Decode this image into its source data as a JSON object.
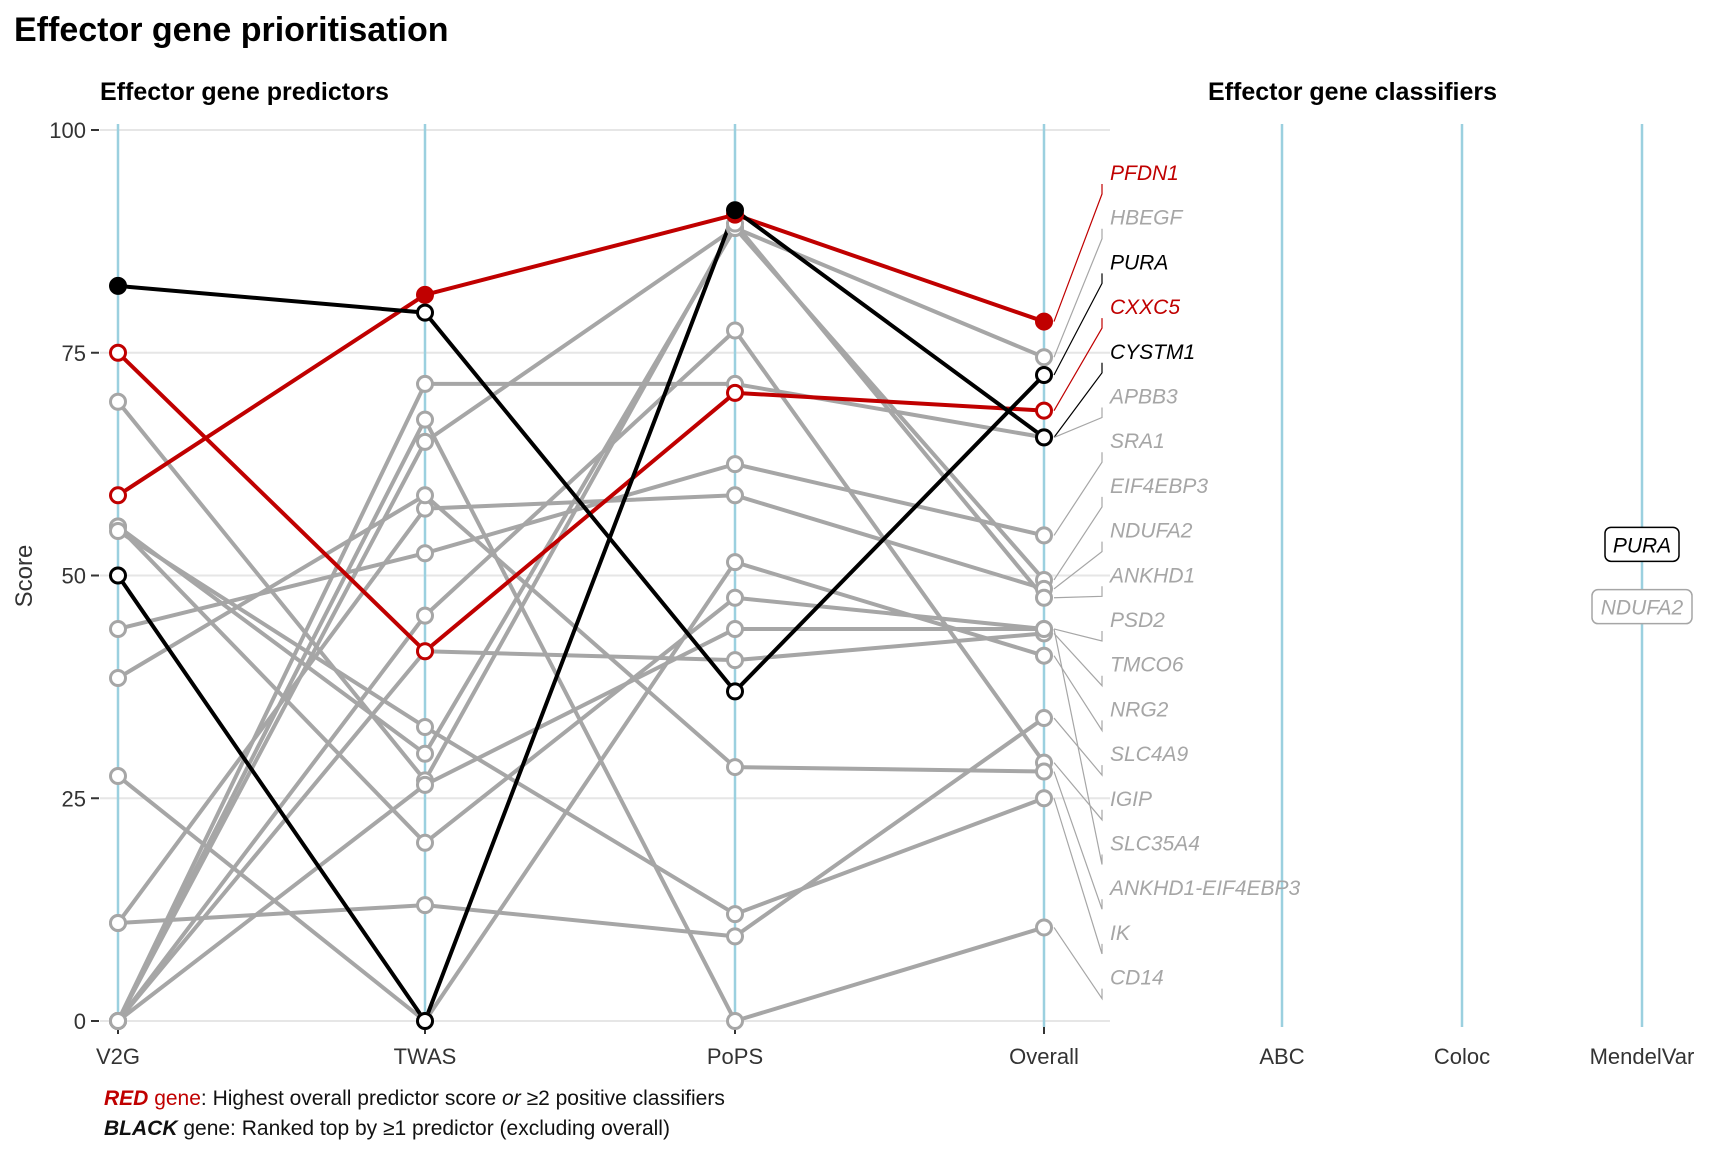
{
  "title": "Effector gene prioritisation",
  "predictors_subtitle": "Effector gene predictors",
  "classifiers_subtitle": "Effector gene classifiers",
  "caption": {
    "line1_em": "RED",
    "line1_word": "gene",
    "line1_rest": ": Highest overall predictor score ",
    "line1_or": "or",
    "line1_end": " ≥2 positive classifiers",
    "line2_em": "BLACK",
    "line2_rest": " gene: Ranked top by ≥1 predictor (excluding overall)"
  },
  "colors": {
    "red": "#c00000",
    "black": "#000000",
    "grey": "#a6a6a6",
    "axis_line": "#9bd0df",
    "grid": "#e6e6e6"
  },
  "chart_data": {
    "type": "line",
    "title": "Effector gene prioritisation",
    "ylabel": "Score",
    "ylim": [
      0,
      100
    ],
    "yticks": [
      0,
      25,
      50,
      75,
      100
    ],
    "categories": [
      "V2G",
      "TWAS",
      "PoPS",
      "Overall"
    ],
    "classifier_categories": [
      "ABC",
      "Coloc",
      "MendelVar"
    ],
    "grid": "horizontal",
    "series": [
      {
        "name": "PFDN1",
        "group": "red",
        "values": [
          59,
          81.5,
          90.5,
          78.5
        ],
        "filled": [
          false,
          true,
          true,
          true
        ]
      },
      {
        "name": "CXXC5",
        "group": "red",
        "values": [
          75,
          41.5,
          70.5,
          68.5
        ],
        "filled": [
          false,
          false,
          false,
          false
        ]
      },
      {
        "name": "PURA",
        "group": "black",
        "values": [
          82.5,
          79.5,
          37,
          72.5
        ],
        "filled": [
          true,
          false,
          false,
          false
        ]
      },
      {
        "name": "CYSTM1",
        "group": "black",
        "values": [
          50,
          0,
          91,
          65.5
        ],
        "filled": [
          false,
          false,
          true,
          false
        ]
      },
      {
        "name": "HBEGF",
        "group": "grey",
        "values": [
          0,
          65,
          89,
          74.5
        ]
      },
      {
        "name": "APBB3",
        "group": "grey",
        "values": [
          0,
          71.5,
          71.5,
          65.5
        ]
      },
      {
        "name": "SRA1",
        "group": "grey",
        "values": [
          44,
          52.5,
          62.5,
          54.5
        ]
      },
      {
        "name": "EIF4EBP3",
        "group": "grey",
        "values": [
          55.5,
          30,
          89,
          49.5
        ]
      },
      {
        "name": "NDUFA2",
        "group": "grey",
        "values": [
          11,
          57.5,
          59,
          48.5
        ]
      },
      {
        "name": "ANKHD1",
        "group": "grey",
        "values": [
          69.5,
          27,
          89.5,
          47.5
        ]
      },
      {
        "name": "PSD2",
        "group": "grey",
        "values": [
          55.5,
          20,
          47.5,
          44
        ]
      },
      {
        "name": "TMCO6",
        "group": "grey",
        "values": [
          0,
          41.5,
          40.5,
          43.5
        ]
      },
      {
        "name": "NRG2",
        "group": "grey",
        "values": [
          27.5,
          0,
          51.5,
          41
        ]
      },
      {
        "name": "SLC4A9",
        "group": "grey",
        "values": [
          11,
          13,
          9.5,
          34
        ]
      },
      {
        "name": "IGIP",
        "group": "grey",
        "values": [
          0,
          45.5,
          77.5,
          29
        ]
      },
      {
        "name": "SLC35A4",
        "group": "grey",
        "values": [
          0,
          26.5,
          44,
          44
        ]
      },
      {
        "name": "ANKHD1-EIF4EBP3",
        "group": "grey",
        "values": [
          38.5,
          59,
          28.5,
          28
        ]
      },
      {
        "name": "IK",
        "group": "grey",
        "values": [
          55,
          33,
          12,
          25
        ]
      },
      {
        "name": "CD14",
        "group": "grey",
        "values": [
          0,
          67.5,
          0,
          10.5
        ]
      }
    ],
    "overall_labels": [
      {
        "text": "PFDN1",
        "group": "red"
      },
      {
        "text": "HBEGF",
        "group": "grey"
      },
      {
        "text": "PURA",
        "group": "black"
      },
      {
        "text": "CXXC5",
        "group": "red"
      },
      {
        "text": "CYSTM1",
        "group": "black"
      },
      {
        "text": "APBB3",
        "group": "grey"
      },
      {
        "text": "SRA1",
        "group": "grey"
      },
      {
        "text": "EIF4EBP3",
        "group": "grey"
      },
      {
        "text": "NDUFA2",
        "group": "grey"
      },
      {
        "text": "ANKHD1",
        "group": "grey"
      },
      {
        "text": "PSD2",
        "group": "grey"
      },
      {
        "text": "TMCO6",
        "group": "grey"
      },
      {
        "text": "NRG2",
        "group": "grey"
      },
      {
        "text": "SLC4A9",
        "group": "grey"
      },
      {
        "text": "IGIP",
        "group": "grey"
      },
      {
        "text": "SLC35A4",
        "group": "grey"
      },
      {
        "text": "ANKHD1-EIF4EBP3",
        "group": "grey"
      },
      {
        "text": "IK",
        "group": "grey"
      },
      {
        "text": "CD14",
        "group": "grey"
      }
    ],
    "classifier_hits": [
      {
        "classifier": "MendelVar",
        "gene": "PURA",
        "group": "black",
        "score": 53.5
      },
      {
        "classifier": "MendelVar",
        "gene": "NDUFA2",
        "group": "grey",
        "score": 46.5
      }
    ]
  }
}
